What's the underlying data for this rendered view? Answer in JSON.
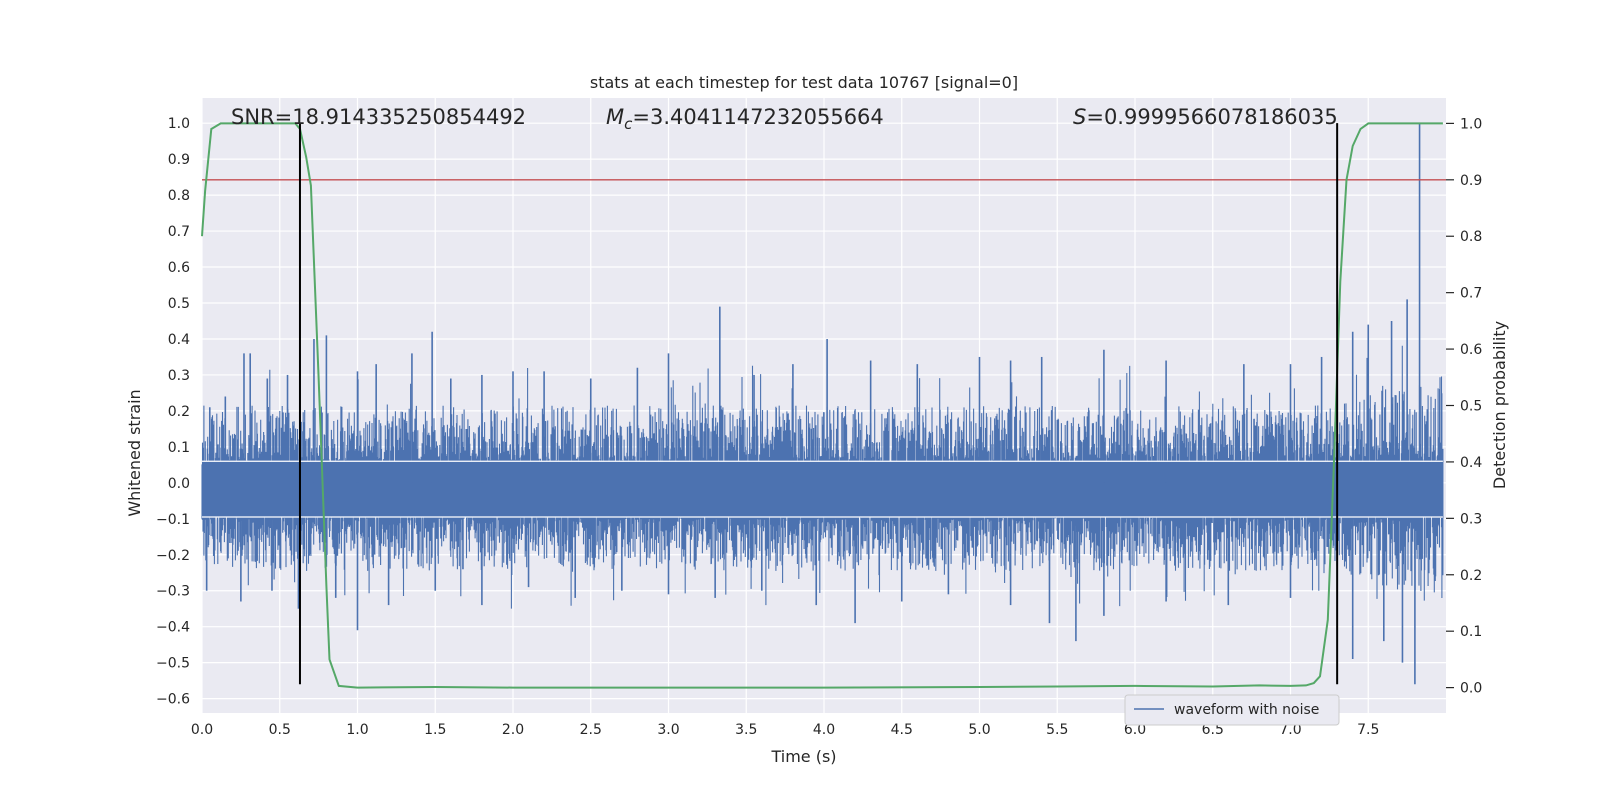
{
  "chart_data": {
    "type": "line",
    "title": "stats at each timestep for test data 10767 [signal=0]",
    "xlabel": "Time (s)",
    "ylabel": "Whitened strain",
    "y2label": "Detection probability",
    "xlim": [
      0.0,
      8.0
    ],
    "ylim": [
      -0.64,
      1.07
    ],
    "y2lim": [
      -0.045,
      1.045
    ],
    "x_ticks": [
      0.0,
      0.5,
      1.0,
      1.5,
      2.0,
      2.5,
      3.0,
      3.5,
      4.0,
      4.5,
      5.0,
      5.5,
      6.0,
      6.5,
      7.0,
      7.5
    ],
    "x_tick_labels": [
      "0.0",
      "0.5",
      "1.0",
      "1.5",
      "2.0",
      "2.5",
      "3.0",
      "3.5",
      "4.0",
      "4.5",
      "5.0",
      "5.5",
      "6.0",
      "6.5",
      "7.0",
      "7.5"
    ],
    "y_ticks": [
      -0.6,
      -0.5,
      -0.4,
      -0.3,
      -0.2,
      -0.1,
      0.0,
      0.1,
      0.2,
      0.3,
      0.4,
      0.5,
      0.6,
      0.7,
      0.8,
      0.9,
      1.0
    ],
    "y_tick_labels": [
      "−0.6",
      "−0.5",
      "−0.4",
      "−0.3",
      "−0.2",
      "−0.1",
      "0.0",
      "0.1",
      "0.2",
      "0.3",
      "0.4",
      "0.5",
      "0.6",
      "0.7",
      "0.8",
      "0.9",
      "1.0"
    ],
    "y2_ticks": [
      0.0,
      0.1,
      0.2,
      0.3,
      0.4,
      0.5,
      0.6,
      0.7,
      0.8,
      0.9,
      1.0
    ],
    "y2_tick_labels": [
      "0.0",
      "0.1",
      "0.2",
      "0.3",
      "0.4",
      "0.5",
      "0.6",
      "0.7",
      "0.8",
      "0.9",
      "1.0"
    ],
    "grid": true,
    "legend": {
      "placement": "bottom-right",
      "entries": [
        "waveform with noise"
      ]
    },
    "annotations": {
      "snr": "SNR=18.914335250854492",
      "mc_symbol": "M",
      "mc_sub": "c",
      "mc_value": "=3.4041147232055664",
      "s_symbol": "S",
      "s_value": "=0.9999566078186035"
    },
    "threshold": {
      "axis": "y2",
      "value": 0.9
    },
    "vlines": [
      0.63,
      7.3
    ],
    "vline_range": [
      -0.56,
      1.0
    ],
    "waveform": {
      "name": "waveform with noise",
      "t_start": 0.0,
      "t_end": 7.98,
      "approx_core_band": [
        -0.095,
        0.06
      ],
      "peaks": [
        [
          0.05,
          0.21
        ],
        [
          0.15,
          0.24
        ],
        [
          0.27,
          0.36
        ],
        [
          0.31,
          0.36
        ],
        [
          0.42,
          0.29
        ],
        [
          0.55,
          0.3
        ],
        [
          0.63,
          0.36
        ],
        [
          0.72,
          0.4
        ],
        [
          0.8,
          0.41
        ],
        [
          1.0,
          0.31
        ],
        [
          1.12,
          0.33
        ],
        [
          1.35,
          0.36
        ],
        [
          1.48,
          0.42
        ],
        [
          1.6,
          0.29
        ],
        [
          1.8,
          0.3
        ],
        [
          2.0,
          0.31
        ],
        [
          2.2,
          0.31
        ],
        [
          2.5,
          0.29
        ],
        [
          2.8,
          0.32
        ],
        [
          3.0,
          0.36
        ],
        [
          3.33,
          0.49
        ],
        [
          3.55,
          0.3
        ],
        [
          3.8,
          0.33
        ],
        [
          4.02,
          0.4
        ],
        [
          4.3,
          0.34
        ],
        [
          4.6,
          0.33
        ],
        [
          5.0,
          0.35
        ],
        [
          5.2,
          0.34
        ],
        [
          5.4,
          0.35
        ],
        [
          5.8,
          0.37
        ],
        [
          6.2,
          0.34
        ],
        [
          6.7,
          0.33
        ],
        [
          7.0,
          0.33
        ],
        [
          7.2,
          0.35
        ],
        [
          7.4,
          0.42
        ],
        [
          7.5,
          0.44
        ],
        [
          7.65,
          0.45
        ],
        [
          7.75,
          0.51
        ],
        [
          7.83,
          1.0
        ]
      ],
      "troughs": [
        [
          0.03,
          -0.3
        ],
        [
          0.25,
          -0.33
        ],
        [
          0.45,
          -0.3
        ],
        [
          0.62,
          -0.35
        ],
        [
          0.86,
          -0.32
        ],
        [
          1.0,
          -0.41
        ],
        [
          1.2,
          -0.34
        ],
        [
          1.5,
          -0.3
        ],
        [
          1.8,
          -0.34
        ],
        [
          2.1,
          -0.29
        ],
        [
          2.4,
          -0.32
        ],
        [
          2.7,
          -0.3
        ],
        [
          3.0,
          -0.31
        ],
        [
          3.3,
          -0.32
        ],
        [
          3.6,
          -0.3
        ],
        [
          3.95,
          -0.34
        ],
        [
          4.2,
          -0.39
        ],
        [
          4.5,
          -0.33
        ],
        [
          4.8,
          -0.31
        ],
        [
          5.2,
          -0.34
        ],
        [
          5.45,
          -0.39
        ],
        [
          5.62,
          -0.44
        ],
        [
          5.8,
          -0.37
        ],
        [
          6.2,
          -0.33
        ],
        [
          6.6,
          -0.34
        ],
        [
          7.0,
          -0.32
        ],
        [
          7.4,
          -0.49
        ],
        [
          7.6,
          -0.44
        ],
        [
          7.72,
          -0.5
        ],
        [
          7.8,
          -0.56
        ]
      ]
    },
    "detection_probability": {
      "x": [
        0.0,
        0.02,
        0.06,
        0.12,
        0.2,
        0.3,
        0.4,
        0.5,
        0.53,
        0.57,
        0.6,
        0.63,
        0.67,
        0.7,
        0.75,
        0.8,
        0.82,
        0.88,
        1.0,
        1.5,
        2.0,
        3.0,
        4.0,
        5.0,
        5.5,
        6.0,
        6.5,
        6.8,
        7.0,
        7.1,
        7.15,
        7.19,
        7.24,
        7.28,
        7.32,
        7.36,
        7.4,
        7.45,
        7.5,
        7.6,
        7.98
      ],
      "y": [
        0.8,
        0.88,
        0.99,
        1.0,
        1.0,
        1.0,
        1.0,
        1.0,
        1.0,
        1.0,
        1.0,
        0.99,
        0.94,
        0.89,
        0.55,
        0.18,
        0.05,
        0.003,
        0.0,
        0.001,
        0.0,
        0.0,
        0.0,
        0.001,
        0.002,
        0.003,
        0.002,
        0.004,
        0.003,
        0.004,
        0.008,
        0.02,
        0.12,
        0.4,
        0.72,
        0.9,
        0.96,
        0.99,
        1.0,
        1.0,
        1.0
      ]
    },
    "colors": {
      "background": "#eaeaf2",
      "grid": "#ffffff",
      "waveform": "#4c72b0",
      "detection": "#55a868",
      "threshold": "#c44e52",
      "vline": "#000000",
      "text": "#262626"
    }
  }
}
